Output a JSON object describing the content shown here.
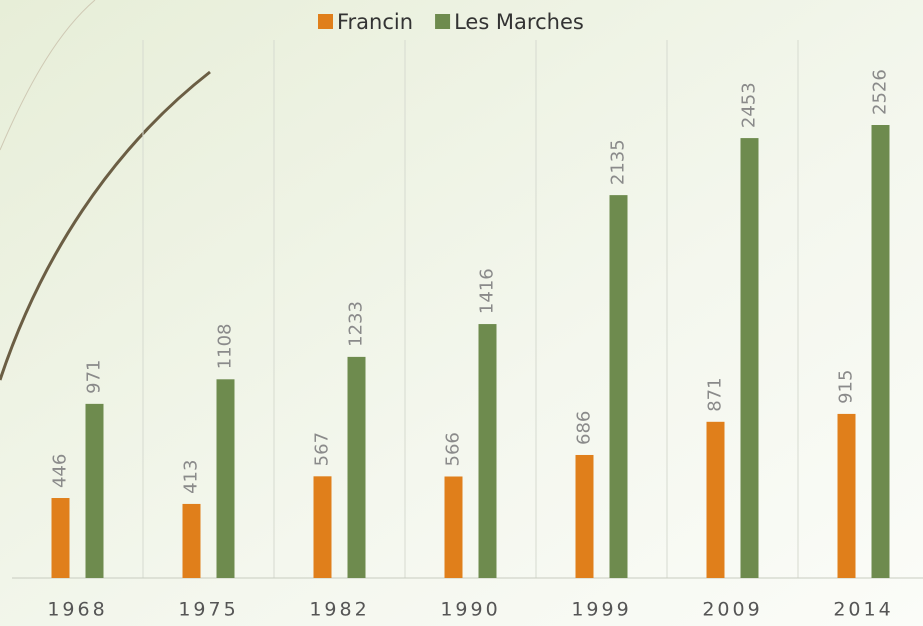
{
  "chart_data": {
    "type": "bar",
    "categories": [
      "1968",
      "1975",
      "1982",
      "1990",
      "1999",
      "2009",
      "2014"
    ],
    "series": [
      {
        "name": "Francin",
        "color": "#e07f1b",
        "values": [
          446,
          413,
          567,
          566,
          686,
          871,
          915
        ]
      },
      {
        "name": "Les Marches",
        "color": "#6e8b4e",
        "values": [
          971,
          1108,
          1233,
          1416,
          2135,
          2453,
          2526
        ]
      }
    ],
    "ylim": [
      0,
      3000
    ],
    "grid": true,
    "legend": "top"
  }
}
